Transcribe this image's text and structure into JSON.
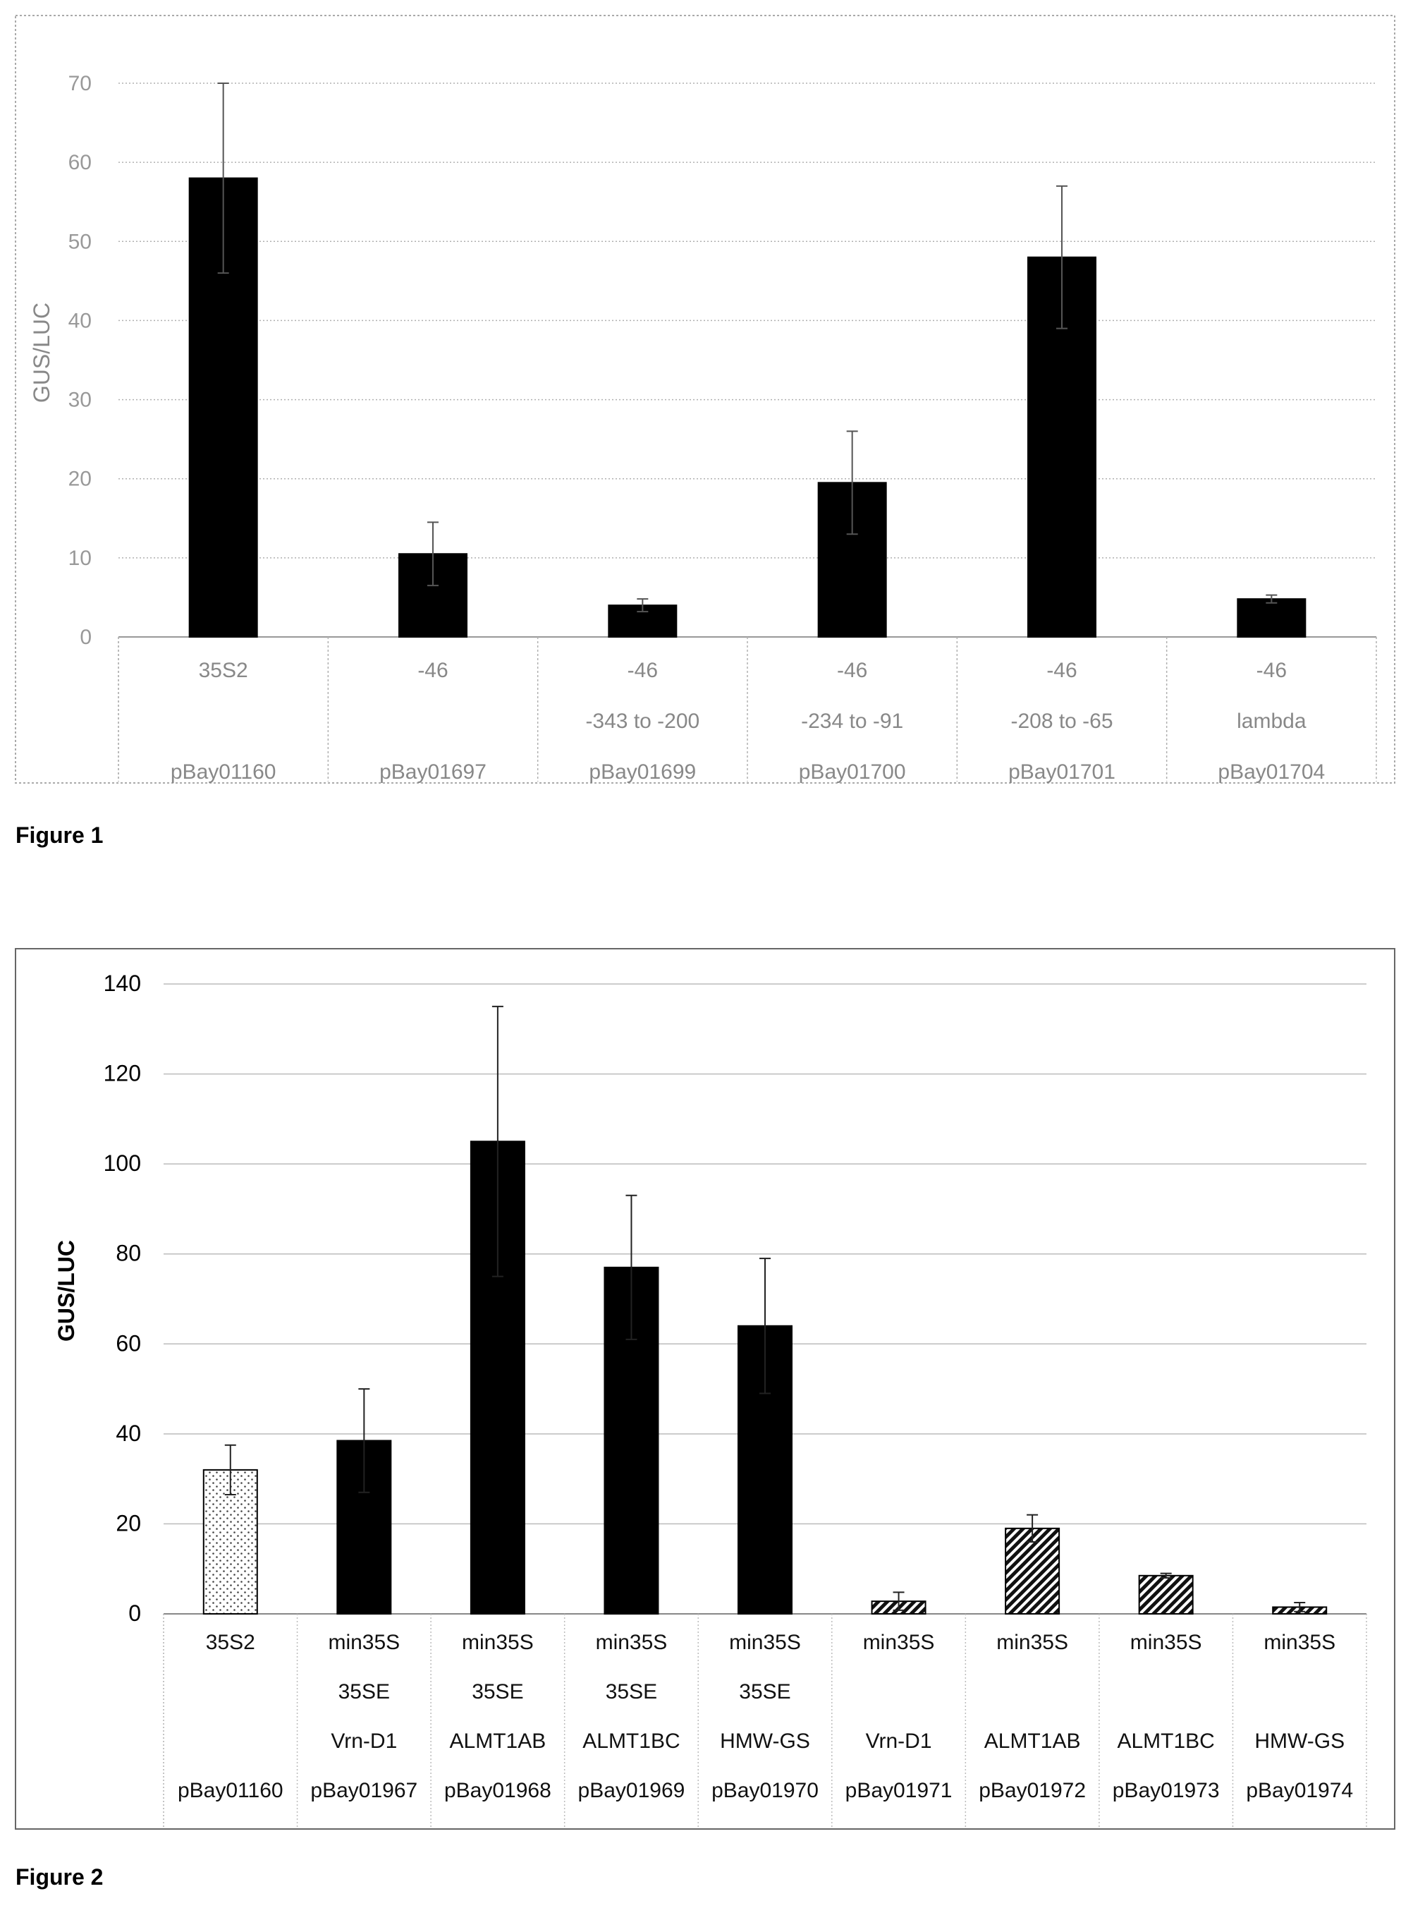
{
  "figures": [
    {
      "caption": "Figure 1",
      "chart_data": {
        "type": "bar",
        "title": "",
        "xlabel": "",
        "ylabel": "GUS/LUC",
        "ylim": [
          0,
          70
        ],
        "yticks": [
          0,
          10,
          20,
          30,
          40,
          50,
          60,
          70
        ],
        "grid": true,
        "categories": [
          [
            "35S2",
            "",
            "pBay01160"
          ],
          [
            "-46",
            "",
            "pBay01697"
          ],
          [
            "-46",
            "-343 to -200",
            "pBay01699"
          ],
          [
            "-46",
            "-234 to -91",
            "pBay01700"
          ],
          [
            "-46",
            "-208 to -65",
            "pBay01701"
          ],
          [
            "-46",
            "lambda",
            "pBay01704"
          ]
        ],
        "series": [
          {
            "values": [
              58,
              10.5,
              4,
              19.5,
              48,
              4.8
            ],
            "errors": [
              12,
              4,
              0.8,
              6.5,
              9,
              0.5
            ]
          }
        ],
        "bar_patterns": [
          "solid",
          "solid",
          "solid",
          "solid",
          "solid",
          "solid"
        ]
      }
    },
    {
      "caption": "Figure 2",
      "chart_data": {
        "type": "bar",
        "title": "",
        "xlabel": "",
        "ylabel": "GUS/LUC",
        "ylim": [
          0,
          140
        ],
        "yticks": [
          0,
          20,
          40,
          60,
          80,
          100,
          120,
          140
        ],
        "grid": true,
        "categories": [
          [
            "35S2",
            "",
            "",
            "pBay01160"
          ],
          [
            "min35S",
            "35SE",
            "Vrn-D1",
            "pBay01967"
          ],
          [
            "min35S",
            "35SE",
            "ALMT1AB",
            "pBay01968"
          ],
          [
            "min35S",
            "35SE",
            "ALMT1BC",
            "pBay01969"
          ],
          [
            "min35S",
            "35SE",
            "HMW-GS",
            "pBay01970"
          ],
          [
            "min35S",
            "",
            "Vrn-D1",
            "pBay01971"
          ],
          [
            "min35S",
            "",
            "ALMT1AB",
            "pBay01972"
          ],
          [
            "min35S",
            "",
            "ALMT1BC",
            "pBay01973"
          ],
          [
            "min35S",
            "",
            "HMW-GS",
            "pBay01974"
          ]
        ],
        "series": [
          {
            "values": [
              32,
              38.5,
              105,
              77,
              64,
              2.8,
              19,
              8.5,
              1.5
            ],
            "errors": [
              5.5,
              11.5,
              30,
              16,
              15,
              2,
              3,
              0.5,
              1
            ]
          }
        ],
        "bar_patterns": [
          "dotted",
          "solid",
          "solid",
          "solid",
          "solid",
          "hatched",
          "hatched",
          "hatched",
          "hatched"
        ]
      }
    }
  ]
}
